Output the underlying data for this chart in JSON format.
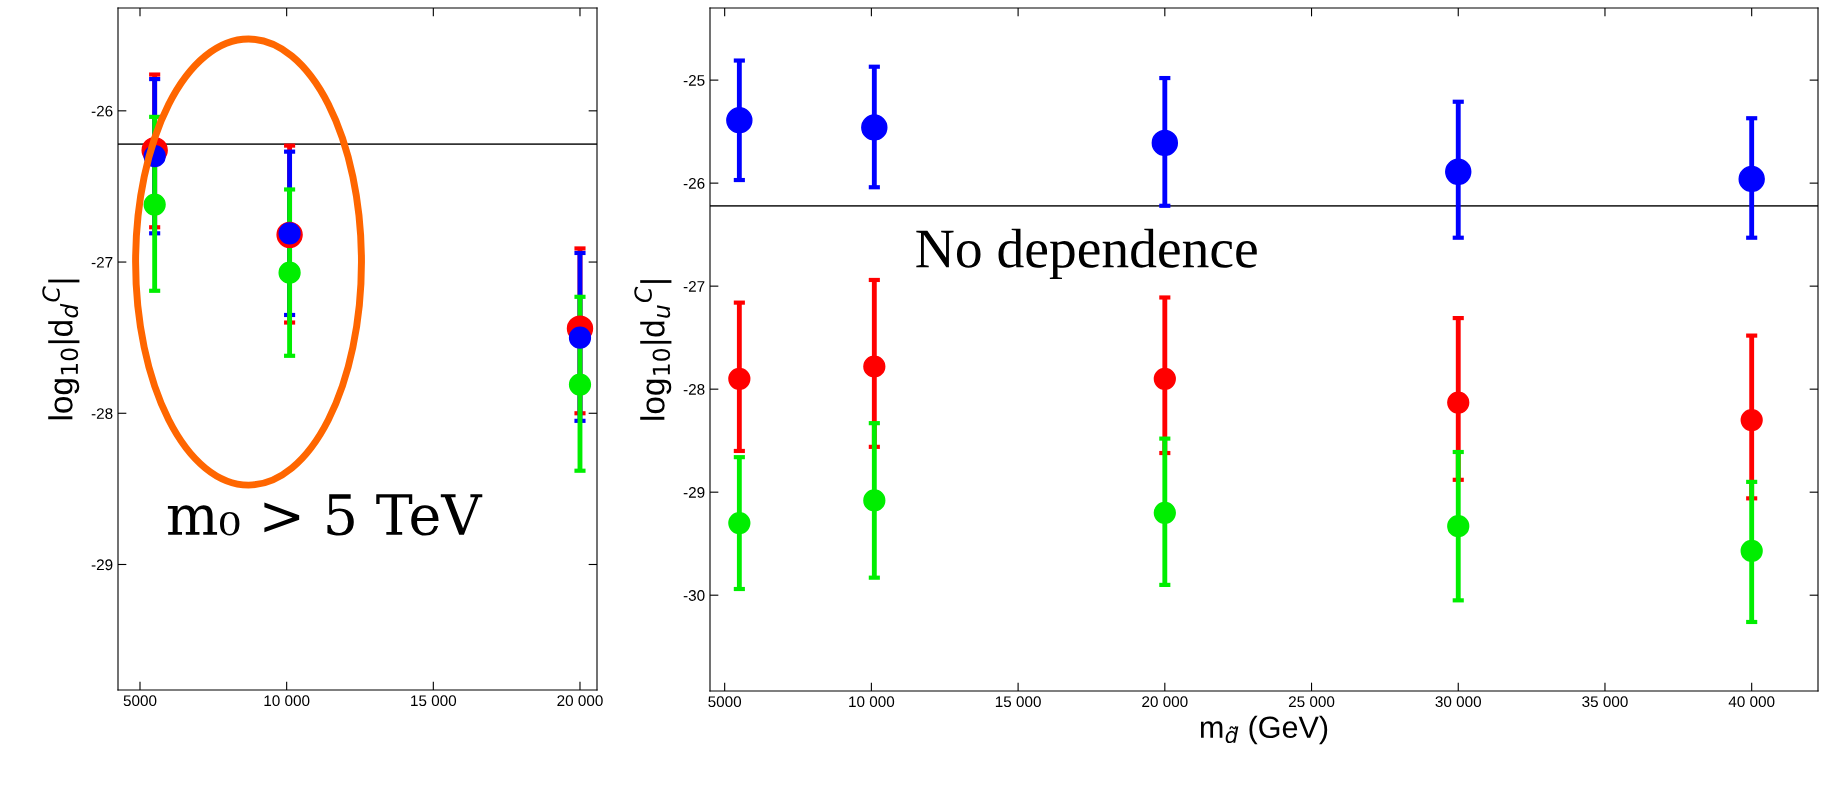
{
  "chart_data": [
    {
      "type": "scatter",
      "ylabel": "log$_{10}$|d$_{d}$$^{C}$|",
      "x": [
        5500,
        10100,
        20000
      ],
      "xlim": [
        4250,
        20580
      ],
      "xticks": [
        5000,
        {
          "value": 10000,
          "label": "10 000"
        },
        {
          "value": 15000,
          "label": "15 000"
        },
        {
          "value": 20000,
          "label": "20 000"
        }
      ],
      "ylim": [
        -29.83,
        -25.32
      ],
      "yticks": [
        -29,
        -28,
        -27,
        -26
      ],
      "marker": "circle",
      "grid": false,
      "series": [
        {
          "color": "#ff0000",
          "values": [
            -26.26,
            -26.82,
            -27.44
          ],
          "errors": [
            [
              -26.77,
              -25.76
            ],
            [
              -27.4,
              -26.23
            ],
            [
              -28.0,
              -26.91
            ]
          ]
        },
        {
          "color": "#0000ff",
          "values": [
            -26.3,
            -26.81,
            -27.5
          ],
          "errors": [
            [
              -26.81,
              -25.79
            ],
            [
              -27.35,
              -26.27
            ],
            [
              -28.05,
              -26.94
            ]
          ]
        },
        {
          "color": "#00ee00",
          "values": [
            -26.62,
            -27.07,
            -27.81
          ],
          "errors": [
            [
              -27.19,
              -26.04
            ],
            [
              -27.62,
              -26.52
            ],
            [
              -28.38,
              -27.23
            ]
          ]
        }
      ],
      "ref_lines": [
        {
          "axis": "y",
          "value": -26.22,
          "color": "#333333"
        }
      ],
      "annotations": [
        "m₀ > 5 TeV"
      ]
    },
    {
      "type": "scatter",
      "ylabel": "log$_{10}$|d$_{u}$$^{C}$|",
      "xlabel": "m$_{d̃}$ (GeV)",
      "x": [
        5500,
        10100,
        20000,
        30000,
        40000
      ],
      "xlim": [
        4500,
        42260
      ],
      "xticks": [
        5000,
        {
          "value": 10000,
          "label": "10 000"
        },
        {
          "value": 15000,
          "label": "15 000"
        },
        {
          "value": 20000,
          "label": "20 000"
        },
        {
          "value": 25000,
          "label": "25 000"
        },
        {
          "value": 30000,
          "label": "30 000"
        },
        {
          "value": 35000,
          "label": "35 000"
        },
        {
          "value": 40000,
          "label": "40 000"
        }
      ],
      "ylim": [
        -30.93,
        -24.3
      ],
      "yticks": [
        -30,
        -29,
        -28,
        -27,
        -26,
        -25
      ],
      "marker": "circle",
      "grid": false,
      "series": [
        {
          "color": "#0000ff",
          "values": [
            -25.39,
            -25.46,
            -25.61,
            -25.89,
            -25.96
          ],
          "errors": [
            [
              -25.97,
              -24.81
            ],
            [
              -26.04,
              -24.87
            ],
            [
              -26.22,
              -24.98
            ],
            [
              -26.53,
              -25.21
            ],
            [
              -26.53,
              -25.37
            ]
          ]
        },
        {
          "color": "#ff0000",
          "values": [
            -27.9,
            -27.78,
            -27.9,
            -28.13,
            -28.3
          ],
          "errors": [
            [
              -28.6,
              -27.16
            ],
            [
              -28.56,
              -26.94
            ],
            [
              -28.62,
              -27.11
            ],
            [
              -28.88,
              -27.31
            ],
            [
              -29.06,
              -27.48
            ]
          ]
        },
        {
          "color": "#00ee00",
          "values": [
            -29.3,
            -29.08,
            -29.2,
            -29.33,
            -29.57
          ],
          "errors": [
            [
              -29.94,
              -28.66
            ],
            [
              -29.83,
              -28.33
            ],
            [
              -29.9,
              -28.48
            ],
            [
              -30.05,
              -28.61
            ],
            [
              -30.26,
              -28.9
            ]
          ]
        }
      ],
      "ref_lines": [
        {
          "axis": "y",
          "value": -26.22,
          "color": "#333333"
        }
      ],
      "annotations": [
        "No dependence"
      ]
    }
  ]
}
